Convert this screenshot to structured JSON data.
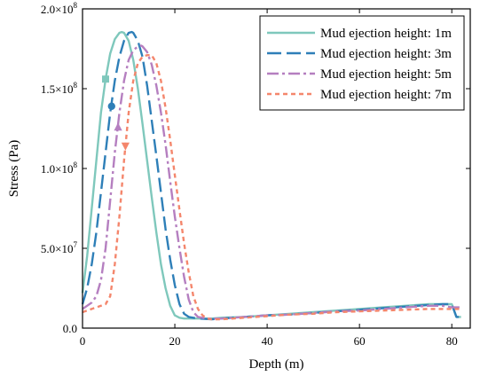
{
  "chart_data": {
    "type": "line",
    "xlabel": "Depth (m)",
    "ylabel": "Stress (Pa)",
    "xlim": [
      0,
      84
    ],
    "ylim": [
      0,
      200000000
    ],
    "xticks": [
      0,
      20,
      40,
      60,
      80
    ],
    "xtick_labels": [
      "0",
      "20",
      "40",
      "60",
      "80"
    ],
    "yticks": [
      0,
      50000000,
      100000000,
      150000000,
      200000000
    ],
    "ytick_labels": [
      {
        "mantissa": "0.0",
        "exponent": ""
      },
      {
        "mantissa": "5.0×10",
        "exponent": "7"
      },
      {
        "mantissa": "1.0×10",
        "exponent": "8"
      },
      {
        "mantissa": "1.5×10",
        "exponent": "8"
      },
      {
        "mantissa": "2.0×10",
        "exponent": "8"
      }
    ],
    "grid": false,
    "legend_position": "top-right",
    "series": [
      {
        "name": "Mud ejection height: 1m",
        "color": "#7fc8bc",
        "dash": "solid",
        "marker": {
          "shape": "square",
          "x": 5,
          "y": 156000000
        },
        "x": [
          0,
          1,
          2,
          3,
          4,
          5,
          6,
          7,
          8,
          8.5,
          9,
          10,
          11,
          12,
          13,
          14,
          15,
          16,
          17,
          18,
          19,
          20,
          21,
          22,
          24,
          26,
          28,
          30,
          35,
          40,
          45,
          50,
          55,
          60,
          65,
          70,
          75,
          78,
          80,
          81,
          82
        ],
        "y": [
          22000000,
          45000000,
          75000000,
          105000000,
          135000000,
          156000000,
          172000000,
          181000000,
          185000000,
          185500000,
          185000000,
          180000000,
          168000000,
          150000000,
          128000000,
          105000000,
          82000000,
          60000000,
          40000000,
          25000000,
          14000000,
          8000000,
          6500000,
          6000000,
          6000000,
          6000000,
          6000000,
          6500000,
          7000000,
          8000000,
          9000000,
          10000000,
          11000000,
          12000000,
          13000000,
          14000000,
          15000000,
          15000000,
          15000000,
          7000000,
          7000000
        ]
      },
      {
        "name": "Mud ejection height: 3m",
        "color": "#2e7fb8",
        "dash": "long",
        "marker": {
          "shape": "circle",
          "x": 6.3,
          "y": 139000000
        },
        "x": [
          0,
          1,
          2,
          3,
          4,
          5,
          6,
          7,
          8,
          9,
          10,
          10.7,
          11,
          12,
          13,
          14,
          15,
          16,
          17,
          18,
          19,
          20,
          21,
          22,
          23,
          25,
          28,
          30,
          35,
          40,
          45,
          50,
          55,
          60,
          65,
          70,
          75,
          78,
          80,
          81,
          82
        ],
        "y": [
          15000000,
          25000000,
          40000000,
          60000000,
          85000000,
          110000000,
          135000000,
          155000000,
          170000000,
          180000000,
          185000000,
          185500000,
          185000000,
          180000000,
          170000000,
          152000000,
          130000000,
          108000000,
          85000000,
          62000000,
          43000000,
          27000000,
          15000000,
          9000000,
          7000000,
          6000000,
          5500000,
          6000000,
          7000000,
          8000000,
          8500000,
          9500000,
          10500000,
          11500000,
          12500000,
          13500000,
          14500000,
          15000000,
          15000000,
          7000000,
          7000000
        ]
      },
      {
        "name": "Mud ejection height: 5m",
        "color": "#b57fc0",
        "dash": "dashdot",
        "marker": {
          "shape": "triangle-up",
          "x": 7.7,
          "y": 126000000
        },
        "x": [
          0,
          1,
          2,
          3,
          4,
          5,
          6,
          7,
          8,
          9,
          10,
          11,
          12,
          12.7,
          13,
          14,
          15,
          16,
          17,
          18,
          19,
          20,
          21,
          22,
          23,
          24,
          25,
          27,
          30,
          35,
          40,
          45,
          50,
          55,
          60,
          65,
          70,
          75,
          78,
          80,
          82
        ],
        "y": [
          12000000,
          14000000,
          16000000,
          20000000,
          30000000,
          50000000,
          80000000,
          110000000,
          135000000,
          155000000,
          168000000,
          174000000,
          176500000,
          177000000,
          176500000,
          173000000,
          165000000,
          152000000,
          135000000,
          115000000,
          92000000,
          70000000,
          50000000,
          32000000,
          18000000,
          10000000,
          7000000,
          6000000,
          6000000,
          7000000,
          8000000,
          8500000,
          9500000,
          10500000,
          11000000,
          12000000,
          13000000,
          14000000,
          14000000,
          13000000,
          13000000
        ]
      },
      {
        "name": "Mud ejection height: 7m",
        "color": "#f4866c",
        "dash": "short",
        "marker": {
          "shape": "triangle-down",
          "x": 9.3,
          "y": 114000000
        },
        "x": [
          0,
          2,
          4,
          5,
          6,
          7,
          8,
          9,
          10,
          11,
          12,
          13,
          14,
          15,
          16,
          17,
          18,
          19,
          20,
          21,
          22,
          23,
          24,
          25,
          26,
          27,
          28,
          30,
          35,
          40,
          45,
          50,
          55,
          60,
          65,
          70,
          75,
          80,
          82
        ],
        "y": [
          10000000,
          12000000,
          14000000,
          15000000,
          20000000,
          40000000,
          70000000,
          105000000,
          135000000,
          155000000,
          166000000,
          170000000,
          171000000,
          171000000,
          166000000,
          155000000,
          138000000,
          118000000,
          96000000,
          74000000,
          53000000,
          35000000,
          20000000,
          12000000,
          8000000,
          6000000,
          5500000,
          5500000,
          6500000,
          7500000,
          8500000,
          9000000,
          10000000,
          10500000,
          11000000,
          11500000,
          12000000,
          12000000,
          12000000
        ]
      }
    ]
  }
}
